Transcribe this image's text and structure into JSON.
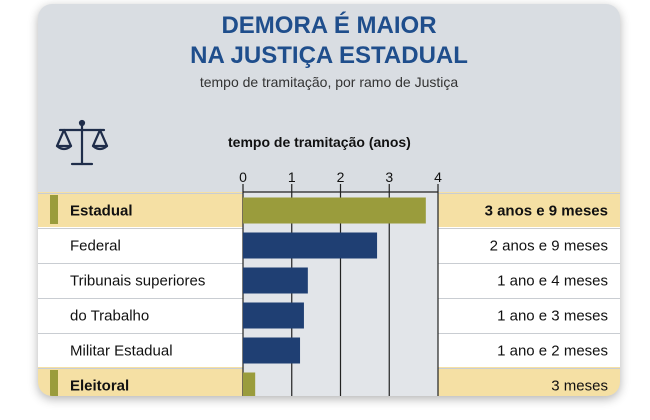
{
  "title_line1": "DEMORA É MAIOR",
  "title_line2": "NA JUSTIÇA ESTADUAL",
  "subtitle": "tempo de tramitação, por ramo de Justiça",
  "icon": "scales-of-justice-icon",
  "colors": {
    "title": "#1f4e8c",
    "bar_default": "#1f3f73",
    "bar_highlight": "#9a9c3c",
    "row_highlight": "#f5e0a4",
    "row_default": "#ffffff",
    "plot_bg": "#e2e5e9"
  },
  "chart_data": {
    "type": "bar",
    "orientation": "horizontal",
    "xlabel": "tempo de tramitação (anos)",
    "xlim": [
      0,
      4
    ],
    "xticks": [
      0,
      1,
      2,
      3,
      4
    ],
    "grid": true,
    "categories": [
      "Estadual",
      "Federal",
      "Tribunais superiores",
      "do Trabalho",
      "Militar Estadual",
      "Eleitoral"
    ],
    "values": [
      3.75,
      2.75,
      1.33,
      1.25,
      1.17,
      0.25
    ],
    "value_labels": [
      "3 anos e 9 meses",
      "2 anos e 9 meses",
      "1 ano e 4 meses",
      "1 ano e 3 meses",
      "1 ano e 2 meses",
      "3 meses"
    ],
    "highlight": [
      true,
      false,
      false,
      false,
      false,
      true
    ]
  }
}
